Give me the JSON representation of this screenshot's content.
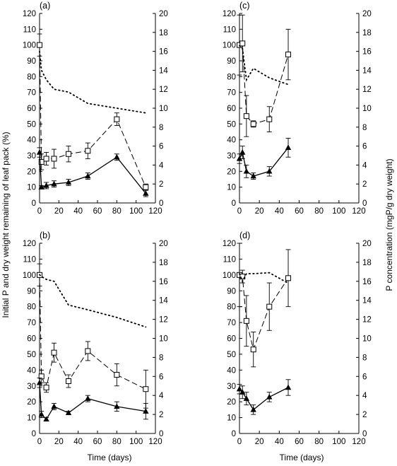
{
  "figure": {
    "xlabel": "Time (days)",
    "ylabel_left": "Initial P and dry weight remaining of leaf pack (%)",
    "ylabel_right": "P concentration (mgP/g dry weight)"
  },
  "chart_data": [
    {
      "type": "line",
      "panel": "(a)",
      "xlim": [
        0,
        120
      ],
      "ylim_left": [
        0,
        120
      ],
      "ylim_right": [
        0,
        20
      ],
      "x_ticks": [
        0,
        20,
        40,
        60,
        80,
        100,
        120
      ],
      "y_left_ticks": [
        0,
        10,
        20,
        30,
        40,
        50,
        60,
        70,
        80,
        90,
        100,
        110,
        120
      ],
      "y_right_ticks": [
        0,
        2,
        4,
        6,
        8,
        10,
        12,
        14,
        16,
        18,
        20
      ],
      "grid": false,
      "series": [
        {
          "marker": "open-square",
          "line": "dashed",
          "axis": "left",
          "x": [
            0,
            2,
            7,
            15,
            30,
            50,
            80,
            110
          ],
          "y": [
            100,
            26,
            28,
            28,
            31,
            33,
            53,
            10
          ],
          "err": [
            7,
            5,
            4,
            6,
            5,
            5,
            4,
            2
          ]
        },
        {
          "marker": "filled-triangle",
          "line": "solid",
          "axis": "left",
          "x": [
            0,
            2,
            7,
            15,
            30,
            50,
            80,
            110
          ],
          "y": [
            32,
            10,
            11,
            12,
            13,
            17,
            29,
            6
          ],
          "err": [
            3,
            1,
            2,
            2,
            2,
            2,
            2,
            2
          ]
        },
        {
          "marker": "none",
          "line": "dotted",
          "axis": "right",
          "x": [
            0,
            2,
            7,
            15,
            30,
            50,
            80,
            110
          ],
          "y": [
            16,
            14,
            13,
            12,
            11.7,
            10.5,
            10.0,
            9.5
          ]
        }
      ]
    },
    {
      "type": "line",
      "panel": "(b)",
      "xlim": [
        0,
        120
      ],
      "ylim_left": [
        0,
        120
      ],
      "ylim_right": [
        0,
        20
      ],
      "x_ticks": [
        0,
        20,
        40,
        60,
        80,
        100,
        120
      ],
      "y_left_ticks": [
        0,
        10,
        20,
        30,
        40,
        50,
        60,
        70,
        80,
        90,
        100,
        110,
        120
      ],
      "y_right_ticks": [
        0,
        2,
        4,
        6,
        8,
        10,
        12,
        14,
        16,
        18,
        20
      ],
      "grid": false,
      "series": [
        {
          "marker": "open-square",
          "line": "dashed",
          "axis": "left",
          "x": [
            0,
            2,
            7,
            15,
            30,
            50,
            80,
            110
          ],
          "y": [
            100,
            36,
            29,
            51,
            33,
            52,
            37,
            28
          ],
          "err": [
            7,
            4,
            3,
            6,
            4,
            6,
            7,
            12
          ]
        },
        {
          "marker": "filled-triangle",
          "line": "solid",
          "axis": "left",
          "x": [
            0,
            2,
            7,
            15,
            30,
            50,
            80,
            110
          ],
          "y": [
            32,
            12,
            9,
            17,
            13,
            22,
            17,
            14
          ],
          "err": [
            3,
            2,
            1,
            2,
            1,
            2,
            3,
            5
          ]
        },
        {
          "marker": "none",
          "line": "dotted",
          "axis": "right",
          "x": [
            0,
            2,
            7,
            15,
            30,
            50,
            80,
            110
          ],
          "y": [
            16.7,
            16.5,
            16.2,
            16.0,
            13.5,
            13.0,
            12.2,
            11.2
          ]
        }
      ]
    },
    {
      "type": "line",
      "panel": "(c)",
      "xlim": [
        0,
        120
      ],
      "ylim_left": [
        0,
        120
      ],
      "ylim_right": [
        0,
        20
      ],
      "x_ticks": [
        0,
        20,
        40,
        60,
        80,
        100,
        120
      ],
      "y_left_ticks": [
        0,
        10,
        20,
        30,
        40,
        50,
        60,
        70,
        80,
        90,
        100,
        110,
        120
      ],
      "y_right_ticks": [
        0,
        2,
        4,
        6,
        8,
        10,
        12,
        14,
        16,
        18,
        20
      ],
      "grid": false,
      "series": [
        {
          "marker": "open-square",
          "line": "dashed",
          "axis": "left",
          "x": [
            0,
            3,
            7,
            14,
            30,
            49
          ],
          "y": [
            100,
            101,
            55,
            50,
            53,
            94
          ],
          "err": [
            19,
            18,
            13,
            2,
            8,
            16
          ]
        },
        {
          "marker": "filled-triangle",
          "line": "solid",
          "axis": "left",
          "x": [
            0,
            3,
            7,
            14,
            30,
            49
          ],
          "y": [
            28,
            32,
            20,
            17,
            20,
            35
          ],
          "err": [
            3,
            4,
            4,
            2,
            3,
            6
          ]
        },
        {
          "marker": "none",
          "line": "dotted",
          "axis": "right",
          "x": [
            0,
            3,
            7,
            14,
            30,
            49
          ],
          "y": [
            16.6,
            16.3,
            13.0,
            14.2,
            13.2,
            12.5
          ]
        }
      ]
    },
    {
      "type": "line",
      "panel": "(d)",
      "xlim": [
        0,
        120
      ],
      "ylim_left": [
        0,
        120
      ],
      "ylim_right": [
        0,
        20
      ],
      "x_ticks": [
        0,
        20,
        40,
        60,
        80,
        100,
        120
      ],
      "y_left_ticks": [
        0,
        10,
        20,
        30,
        40,
        50,
        60,
        70,
        80,
        90,
        100,
        110,
        120
      ],
      "y_right_ticks": [
        0,
        2,
        4,
        6,
        8,
        10,
        12,
        14,
        16,
        18,
        20
      ],
      "grid": false,
      "series": [
        {
          "marker": "open-square",
          "line": "dashed",
          "axis": "left",
          "x": [
            0,
            3,
            7,
            14,
            30,
            49
          ],
          "y": [
            100,
            99,
            71,
            53,
            80,
            98
          ],
          "err": [
            20,
            4,
            16,
            11,
            15,
            18
          ]
        },
        {
          "marker": "filled-triangle",
          "line": "solid",
          "axis": "left",
          "x": [
            0,
            3,
            7,
            14,
            30,
            49
          ],
          "y": [
            28,
            26,
            22,
            15,
            23,
            29
          ],
          "err": [
            3,
            4,
            4,
            3,
            3,
            5
          ]
        },
        {
          "marker": "none",
          "line": "dotted",
          "axis": "right",
          "x": [
            0,
            3,
            7,
            14,
            30,
            49
          ],
          "y": [
            16.8,
            16.0,
            16.8,
            16.8,
            16.9,
            15.8
          ]
        }
      ]
    }
  ]
}
